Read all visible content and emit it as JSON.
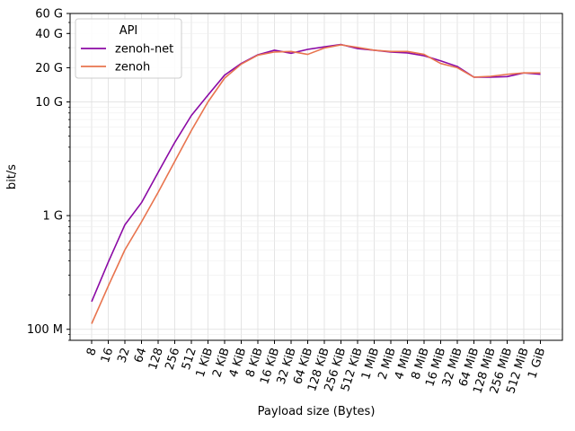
{
  "chart_data": {
    "type": "line",
    "xlabel": "Payload size (Bytes)",
    "ylabel": "bit/s",
    "yscale": "log",
    "ylim": [
      80000000,
      60000000000
    ],
    "grid": true,
    "categories": [
      "8",
      "16",
      "32",
      "64",
      "128",
      "256",
      "512",
      "1 KiB",
      "2 KiB",
      "4 KiB",
      "8 KiB",
      "16 KiB",
      "32 KiB",
      "64 KiB",
      "128 KiB",
      "256 KiB",
      "512 KiB",
      "1 MiB",
      "2 MiB",
      "4 MiB",
      "8 MiB",
      "16 MiB",
      "32 MiB",
      "64 MiB",
      "128 MiB",
      "256 MiB",
      "512 MiB",
      "1 GiB"
    ],
    "yticks": [
      {
        "value": 100000000,
        "label": "100 M"
      },
      {
        "value": 1000000000,
        "label": "1 G"
      },
      {
        "value": 10000000000,
        "label": "10 G"
      },
      {
        "value": 20000000000,
        "label": "20 G"
      },
      {
        "value": 40000000000,
        "label": "40 G"
      },
      {
        "value": 60000000000,
        "label": "60 G"
      }
    ],
    "legend": {
      "title": "API",
      "placement": "top-left"
    },
    "series": [
      {
        "name": "zenoh-net",
        "color": "#8b0aa5",
        "values": [
          175000000.0,
          390000000.0,
          830000000.0,
          1300000000.0,
          2400000000.0,
          4400000000.0,
          7600000000.0,
          11500000000.0,
          17200000000.0,
          21800000000.0,
          26000000000.0,
          28500000000.0,
          26800000000.0,
          29000000000.0,
          30500000000.0,
          32000000000.0,
          29500000000.0,
          28500000000.0,
          27500000000.0,
          27000000000.0,
          25500000000.0,
          23000000000.0,
          20500000000.0,
          16500000000.0,
          16500000000.0,
          16700000000.0,
          18000000000.0,
          17500000000.0
        ]
      },
      {
        "name": "zenoh",
        "color": "#e8744e",
        "values": [
          112000000.0,
          240000000.0,
          500000000.0,
          880000000.0,
          1600000000.0,
          3000000000.0,
          5600000000.0,
          10000000000.0,
          16200000000.0,
          21500000000.0,
          25800000000.0,
          27500000000.0,
          27800000000.0,
          26200000000.0,
          29800000000.0,
          31800000000.0,
          30200000000.0,
          28500000000.0,
          27800000000.0,
          27800000000.0,
          26200000000.0,
          21800000000.0,
          20000000000.0,
          16500000000.0,
          16800000000.0,
          17500000000.0,
          18000000000.0,
          18000000000.0
        ]
      }
    ]
  }
}
